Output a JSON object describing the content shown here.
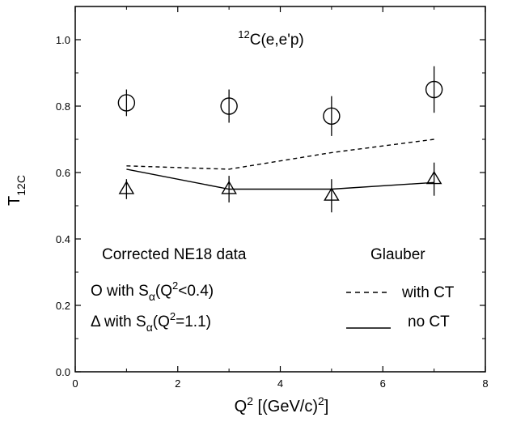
{
  "chart_data": {
    "type": "scatter",
    "title": "",
    "annotation_title": {
      "sup": "12",
      "text": "C(e,e'p)"
    },
    "xlabel": {
      "pre": "Q",
      "sup": "2",
      "post": " [(GeV/c)",
      "sup2": "2",
      "end": "]"
    },
    "ylabel": {
      "pre": "T",
      "sub": "12C"
    },
    "xlim": [
      0,
      8
    ],
    "ylim": [
      0.0,
      1.1
    ],
    "xticks": [
      0,
      2,
      4,
      6,
      8
    ],
    "xtick_labels": [
      "0",
      "2",
      "4",
      "6",
      "8"
    ],
    "yticks": [
      0.0,
      0.2,
      0.4,
      0.6,
      0.8,
      1.0
    ],
    "ytick_labels": [
      "0.0",
      "0.2",
      "0.4",
      "0.6",
      "0.8",
      "1.0"
    ],
    "series": [
      {
        "marker": "circle",
        "x": [
          1,
          3,
          5,
          7
        ],
        "y": [
          0.81,
          0.8,
          0.77,
          0.85
        ],
        "err": [
          0.04,
          0.05,
          0.06,
          0.07
        ]
      },
      {
        "marker": "triangle",
        "x": [
          1,
          3,
          5,
          7
        ],
        "y": [
          0.55,
          0.55,
          0.53,
          0.58
        ],
        "err": [
          0.03,
          0.04,
          0.05,
          0.05
        ]
      },
      {
        "marker": "none",
        "linestyle": "dashed",
        "x": [
          1,
          3,
          5,
          7
        ],
        "y": [
          0.62,
          0.61,
          0.66,
          0.7
        ]
      },
      {
        "marker": "none",
        "linestyle": "solid",
        "x": [
          1,
          3,
          5,
          7
        ],
        "y": [
          0.61,
          0.55,
          0.55,
          0.57
        ]
      }
    ],
    "legend": {
      "left_heading": "Corrected NE18 data",
      "right_heading": "Glauber",
      "circle_entry": {
        "mark": "O",
        "pre": " with S",
        "sub": "α",
        "post": "(Q",
        "sup": "2",
        "end": "<0.4)"
      },
      "triangle_entry": {
        "mark": "Δ",
        "pre": " with S",
        "sub": "α",
        "post": "(Q",
        "sup": "2",
        "end": "=1.1)"
      },
      "dashed_entry": "with CT",
      "solid_entry": "no CT"
    }
  }
}
